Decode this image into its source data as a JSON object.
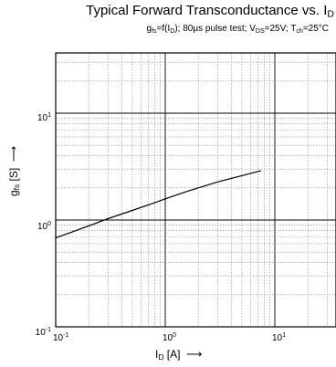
{
  "chart_data": {
    "type": "line",
    "title_main": "Typical Forward Transconductance vs. I",
    "title_sub": "D",
    "subtitle_parts": {
      "g": "g",
      "fs": "fs",
      "f_open": "=f(I",
      "D": "D",
      "mid": "); 80µs pulse test; V",
      "DS": "DS",
      "mid2": "=25V; T",
      "ch": "ch",
      "end": "=25°C"
    },
    "xlabel": {
      "main": "I",
      "sub": "D",
      "unit": " [A]",
      "arrow": "⟶"
    },
    "ylabel": {
      "main": "g",
      "sub": "fs",
      "unit": " [S]",
      "arrow": "⟶"
    },
    "xscale": "log",
    "yscale": "log",
    "xlim": [
      0.1,
      40
    ],
    "ylim": [
      0.1,
      40
    ],
    "x_ticks": [
      {
        "base": "10",
        "exp": "-1"
      },
      {
        "base": "10",
        "exp": "0"
      },
      {
        "base": "10",
        "exp": "1"
      }
    ],
    "y_ticks": [
      {
        "base": "10",
        "exp": "-1"
      },
      {
        "base": "10",
        "exp": "0"
      },
      {
        "base": "10",
        "exp": "1"
      }
    ],
    "grid": true,
    "series": [
      {
        "x": [
          0.1,
          0.2,
          0.3,
          0.5,
          0.8,
          1.0,
          1.5,
          2.0,
          3.0,
          5.0,
          7.5
        ],
        "y": [
          0.68,
          0.88,
          1.03,
          1.23,
          1.45,
          1.58,
          1.82,
          2.0,
          2.27,
          2.6,
          2.9
        ]
      }
    ]
  }
}
